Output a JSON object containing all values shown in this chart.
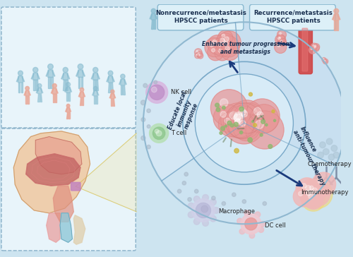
{
  "bg_color": "#cde4f0",
  "box1_label_line1": "Nonrecurrence/metastasis",
  "box1_label_line2": "HPSCC patients",
  "box2_label_line1": "Recurrence/metastasis",
  "box2_label_line2": "HPSCC patients",
  "sector1_label": "Enhance tumour progression\nand metastasigs",
  "sector2_label_lines": [
    "Educate local",
    "immunity",
    "response"
  ],
  "sector3_label_lines": [
    "Influence",
    "anti-tumour therapy"
  ],
  "label_nk": "NK cell",
  "label_t": "T cell",
  "label_macro": "Macrophage",
  "label_dc": "DC cell",
  "label_chemo": "Chemotherapy",
  "label_immuno": "Immunotherapy",
  "tumor_pink_light": "#f0b8b8",
  "tumor_pink": "#e89898",
  "tumor_pink_dark": "#d07878",
  "tumor_yellow": "#f0d878",
  "nk_color": "#c090c8",
  "t_color": "#90c890",
  "macro_color_main": "#b8b8d8",
  "macro_color_center": "#e08080",
  "dc_color_main": "#e8b0c0",
  "dc_color_center": "#e87878",
  "vessel_red": "#d04040",
  "vessel_light": "#e87878",
  "arrow_color": "#1a3a7c",
  "outer_ring_color": "#90b8d0",
  "inner_ring_color": "#78a8c8",
  "sector_line_color": "#78a8c8",
  "sector_bg_top": "#d8eaf5",
  "sector_bg_left": "#d0e5f2",
  "sector_bg_right": "#c8e0f0",
  "inner_circle_bg": "#ddeef8",
  "chemo_dot_color": "#b0c8d8",
  "immuno_color": "#8090a8",
  "dot_color": "#a8b8c8",
  "dashed_border": "#88b0c8",
  "box_bg": "#e0f0f8",
  "left_box_bg": "#e8f4fa",
  "salmon": "#e8a898",
  "teal": "#88bcd0",
  "microbiota_green": "#90b870",
  "microbiota_yellow": "#d0b840",
  "text_dark": "#1a3050",
  "text_mid": "#2a5070"
}
